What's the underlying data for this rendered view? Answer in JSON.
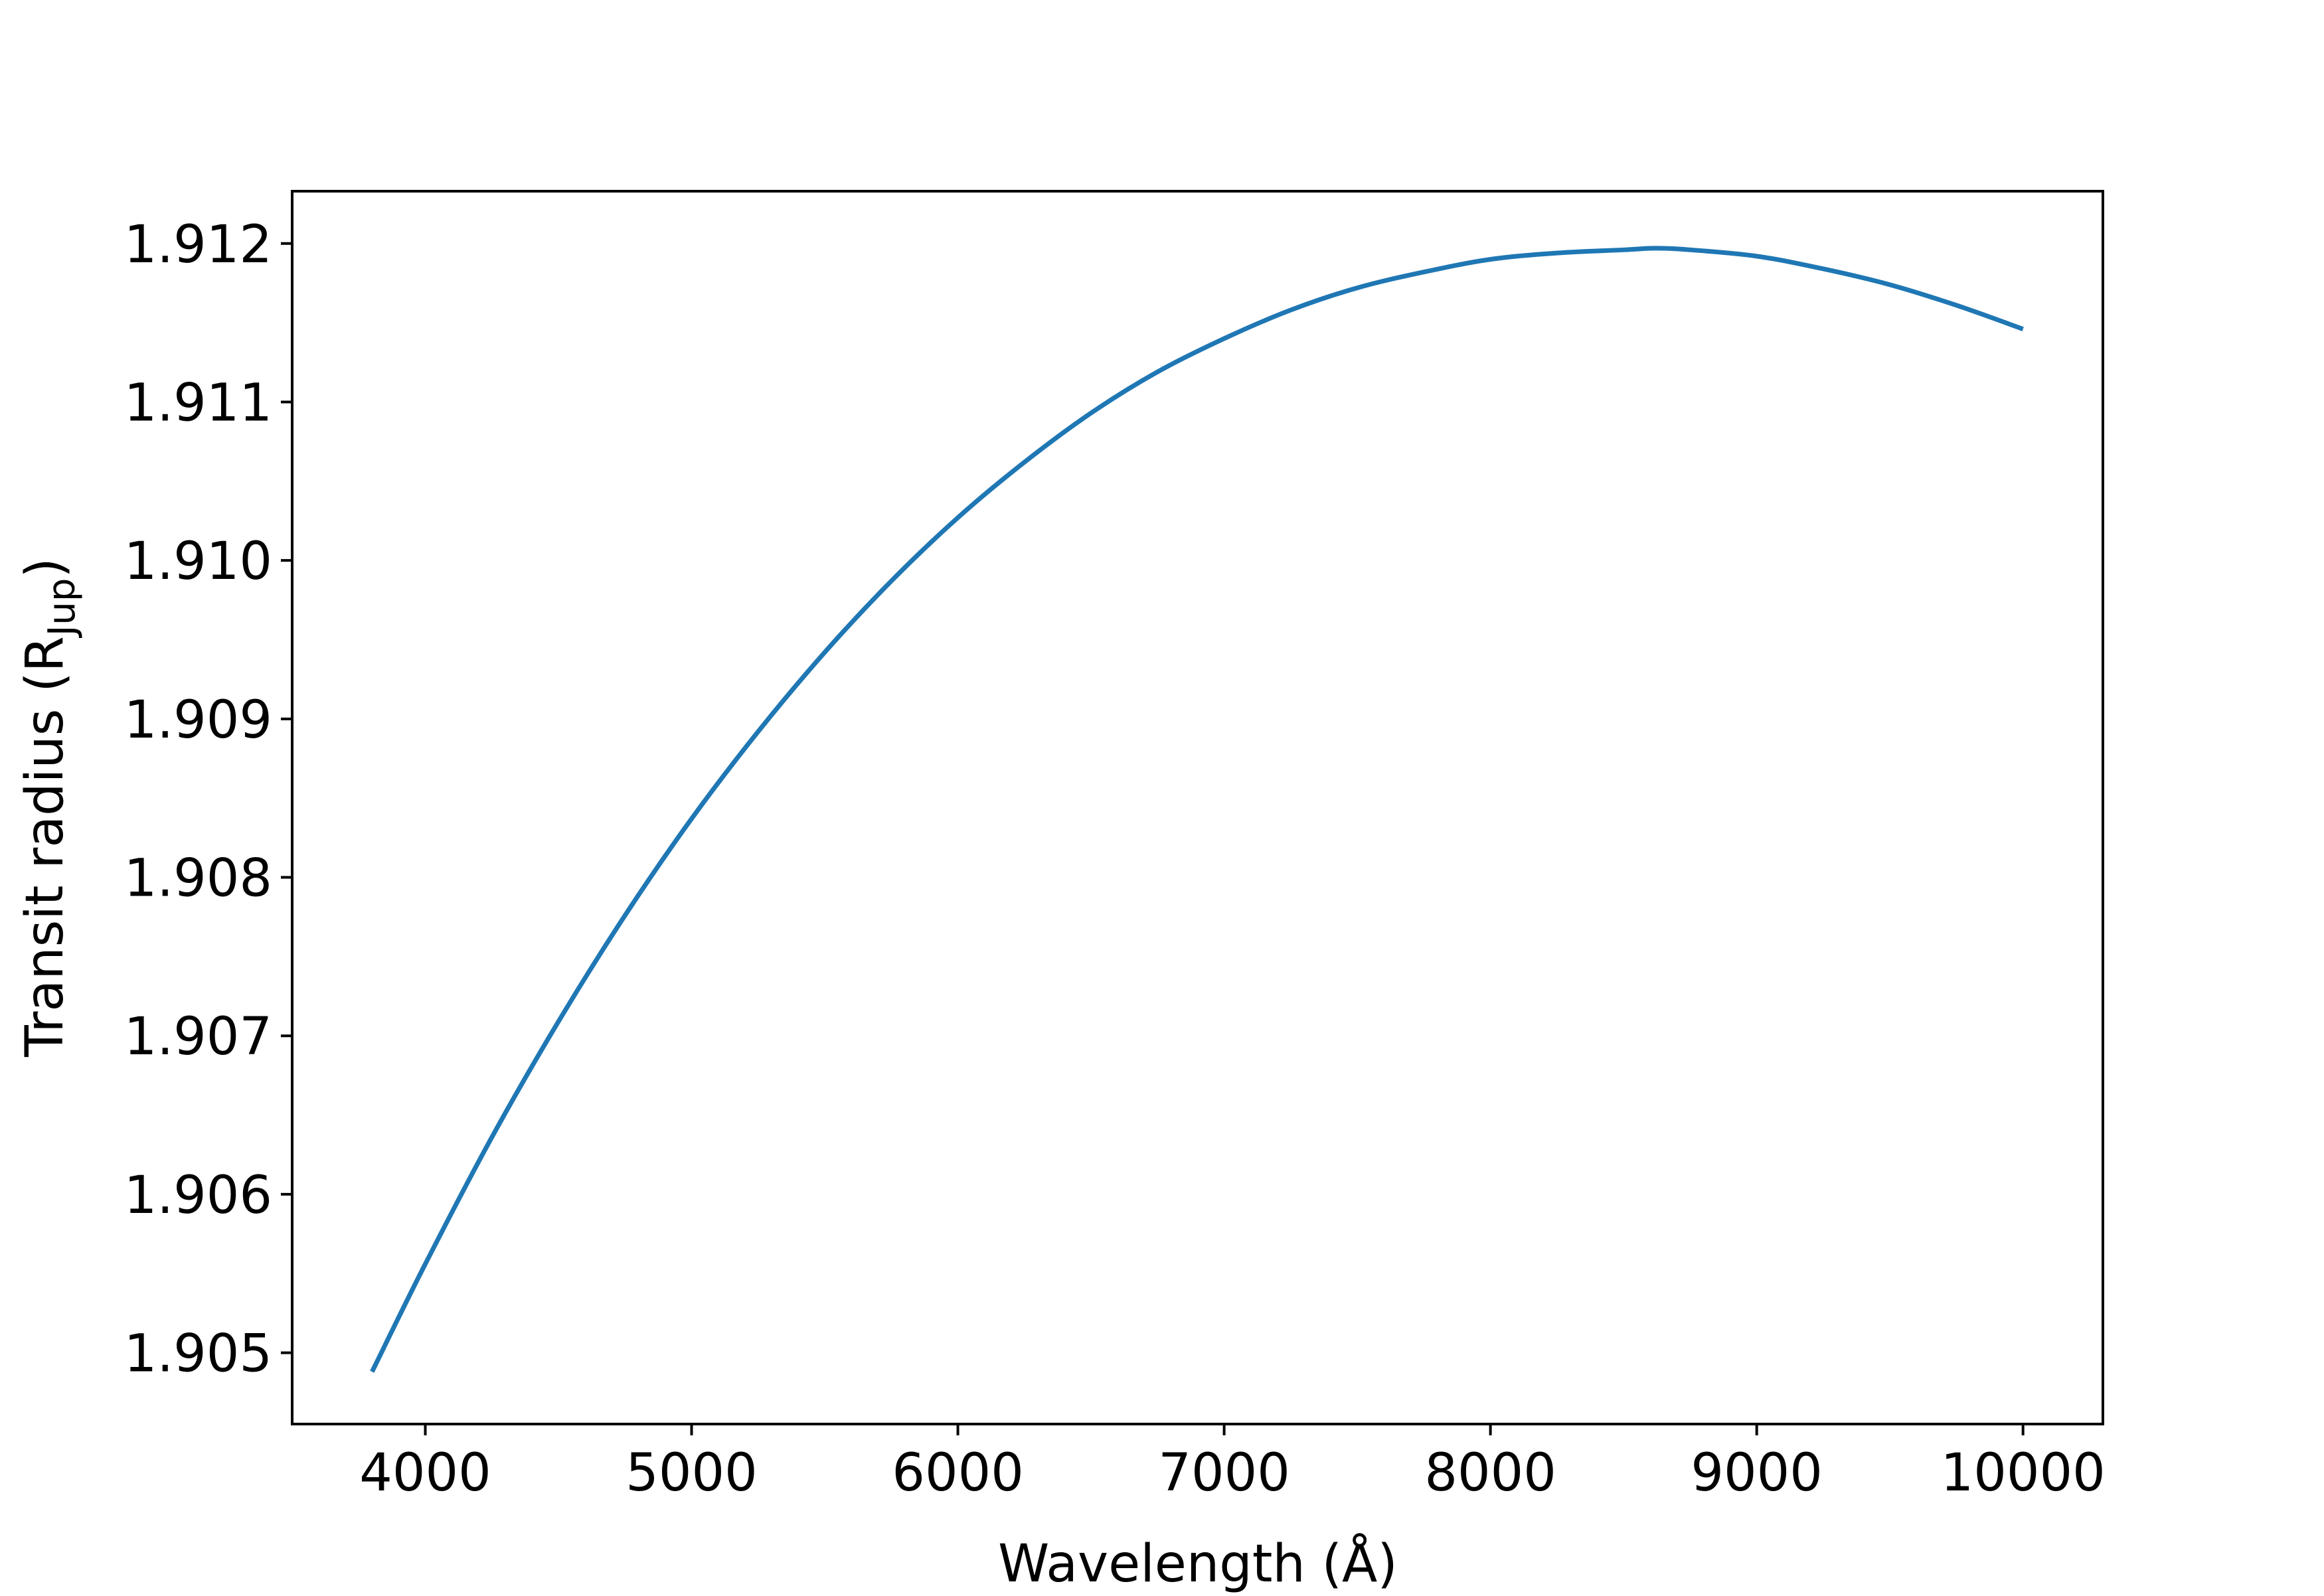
{
  "chart_data": {
    "type": "line",
    "title": "",
    "xlabel": "Wavelength (Å)",
    "ylabel": {
      "main": "Transit radius (R",
      "sub": "Jup",
      "close": ")"
    },
    "xlim": [
      3500,
      10300
    ],
    "ylim": [
      1.90455,
      1.91233
    ],
    "xticks": [
      4000,
      5000,
      6000,
      7000,
      8000,
      9000,
      10000
    ],
    "xtick_labels": [
      "4000",
      "5000",
      "6000",
      "7000",
      "8000",
      "9000",
      "10000"
    ],
    "yticks": [
      1.905,
      1.906,
      1.907,
      1.908,
      1.909,
      1.91,
      1.911,
      1.912
    ],
    "ytick_labels": [
      "1.905",
      "1.906",
      "1.907",
      "1.908",
      "1.909",
      "1.910",
      "1.911",
      "1.912"
    ],
    "grid": false,
    "series": [
      {
        "color": "#1f77b4",
        "x": [
          3800,
          4000,
          4250,
          4500,
          4750,
          5000,
          5250,
          5500,
          5750,
          6000,
          6250,
          6500,
          6750,
          7000,
          7250,
          7500,
          7750,
          8000,
          8250,
          8500,
          8620,
          8750,
          9000,
          9250,
          9500,
          9750,
          10000
        ],
        "y": [
          1.90488,
          1.90556,
          1.90636,
          1.90709,
          1.90776,
          1.90837,
          1.90892,
          1.90942,
          1.90987,
          1.91027,
          1.91062,
          1.91093,
          1.91119,
          1.9114,
          1.91158,
          1.91172,
          1.91182,
          1.9119,
          1.91194,
          1.91196,
          1.91197,
          1.91196,
          1.91192,
          1.91184,
          1.91174,
          1.91161,
          1.91146
        ]
      }
    ]
  }
}
